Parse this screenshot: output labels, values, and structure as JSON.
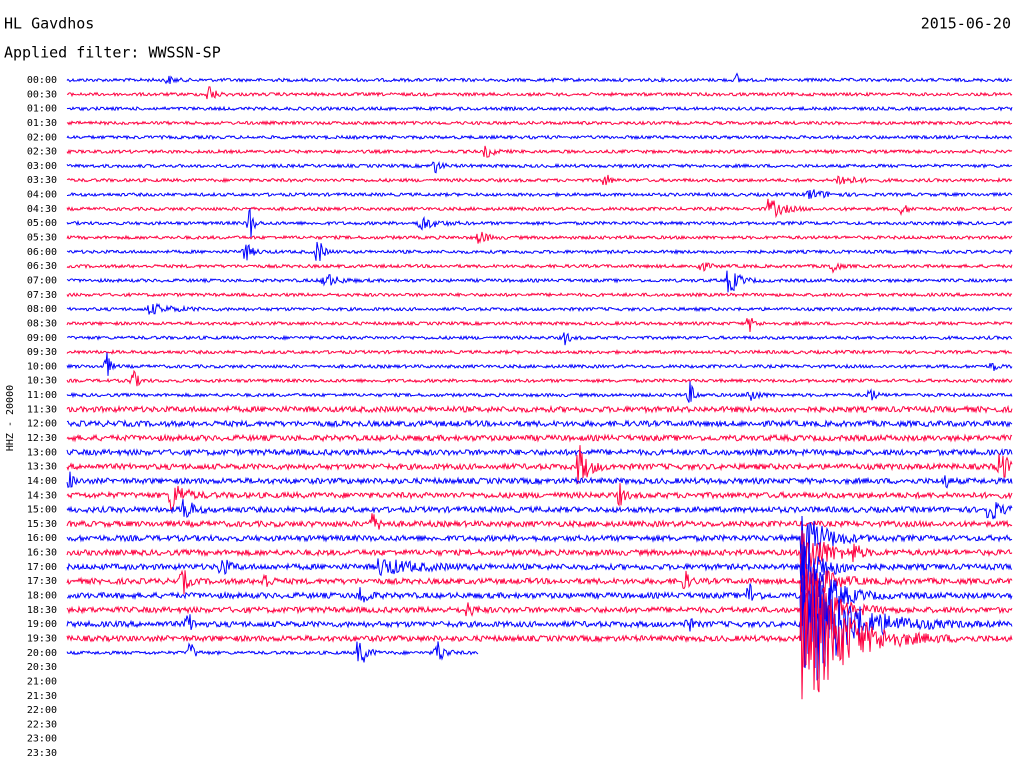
{
  "header": {
    "station": "HL Gavdhos",
    "date": "2015-06-20",
    "filter": "Applied filter: WWSSN-SP"
  },
  "axis_label": "HHZ - 20000",
  "rows": [
    {
      "time": "00:00",
      "color": "#0000ff"
    },
    {
      "time": "00:30",
      "color": "#ff0040"
    },
    {
      "time": "01:00",
      "color": "#0000ff"
    },
    {
      "time": "01:30",
      "color": "#ff0040"
    },
    {
      "time": "02:00",
      "color": "#0000ff"
    },
    {
      "time": "02:30",
      "color": "#ff0040"
    },
    {
      "time": "03:00",
      "color": "#0000ff"
    },
    {
      "time": "03:30",
      "color": "#ff0040"
    },
    {
      "time": "04:00",
      "color": "#0000ff"
    },
    {
      "time": "04:30",
      "color": "#ff0040"
    },
    {
      "time": "05:00",
      "color": "#0000ff"
    },
    {
      "time": "05:30",
      "color": "#ff0040"
    },
    {
      "time": "06:00",
      "color": "#0000ff"
    },
    {
      "time": "06:30",
      "color": "#ff0040"
    },
    {
      "time": "07:00",
      "color": "#0000ff"
    },
    {
      "time": "07:30",
      "color": "#ff0040"
    },
    {
      "time": "08:00",
      "color": "#0000ff"
    },
    {
      "time": "08:30",
      "color": "#ff0040"
    },
    {
      "time": "09:00",
      "color": "#0000ff"
    },
    {
      "time": "09:30",
      "color": "#ff0040"
    },
    {
      "time": "10:00",
      "color": "#0000ff"
    },
    {
      "time": "10:30",
      "color": "#ff0040"
    },
    {
      "time": "11:00",
      "color": "#0000ff"
    },
    {
      "time": "11:30",
      "color": "#ff0040"
    },
    {
      "time": "12:00",
      "color": "#0000ff"
    },
    {
      "time": "12:30",
      "color": "#ff0040"
    },
    {
      "time": "13:00",
      "color": "#0000ff"
    },
    {
      "time": "13:30",
      "color": "#ff0040"
    },
    {
      "time": "14:00",
      "color": "#0000ff"
    },
    {
      "time": "14:30",
      "color": "#ff0040"
    },
    {
      "time": "15:00",
      "color": "#0000ff"
    },
    {
      "time": "15:30",
      "color": "#ff0040"
    },
    {
      "time": "16:00",
      "color": "#0000ff"
    },
    {
      "time": "16:30",
      "color": "#ff0040"
    },
    {
      "time": "17:00",
      "color": "#0000ff"
    },
    {
      "time": "17:30",
      "color": "#ff0040"
    },
    {
      "time": "18:00",
      "color": "#0000ff"
    },
    {
      "time": "18:30",
      "color": "#ff0040"
    },
    {
      "time": "19:00",
      "color": "#0000ff"
    },
    {
      "time": "19:30",
      "color": "#ff0040"
    },
    {
      "time": "20:00",
      "color": "#0000ff"
    },
    {
      "time": "20:30"
    },
    {
      "time": "21:00"
    },
    {
      "time": "21:30"
    },
    {
      "time": "22:00"
    },
    {
      "time": "22:30"
    },
    {
      "time": "23:00"
    },
    {
      "time": "23:30"
    }
  ]
}
